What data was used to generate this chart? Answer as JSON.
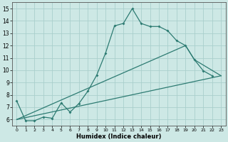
{
  "background_color": "#cde8e5",
  "grid_color": "#aacfcc",
  "line_color": "#2d7b72",
  "xlim": [
    -0.5,
    23.5
  ],
  "ylim": [
    5.5,
    15.5
  ],
  "xticks": [
    0,
    1,
    2,
    3,
    4,
    5,
    6,
    7,
    8,
    9,
    10,
    11,
    12,
    13,
    14,
    15,
    16,
    17,
    18,
    19,
    20,
    21,
    22,
    23
  ],
  "yticks": [
    6,
    7,
    8,
    9,
    10,
    11,
    12,
    13,
    14,
    15
  ],
  "xlabel": "Humidex (Indice chaleur)",
  "wavy_line": {
    "x": [
      0,
      1,
      2,
      3,
      4,
      5,
      6,
      7,
      8,
      9,
      10,
      11,
      12,
      13,
      14,
      15,
      16,
      17,
      18,
      19,
      20,
      21,
      22
    ],
    "y": [
      7.5,
      5.9,
      5.9,
      6.2,
      6.1,
      7.35,
      6.6,
      7.3,
      8.3,
      9.6,
      11.4,
      13.6,
      13.8,
      15.0,
      13.8,
      13.55,
      13.55,
      13.2,
      12.4,
      12.0,
      10.85,
      9.95,
      9.55
    ]
  },
  "straight_line1": {
    "x": [
      0,
      23
    ],
    "y": [
      6.0,
      9.55
    ]
  },
  "straight_line2": {
    "x": [
      0,
      19,
      20,
      23
    ],
    "y": [
      6.0,
      12.0,
      10.85,
      9.55
    ]
  }
}
